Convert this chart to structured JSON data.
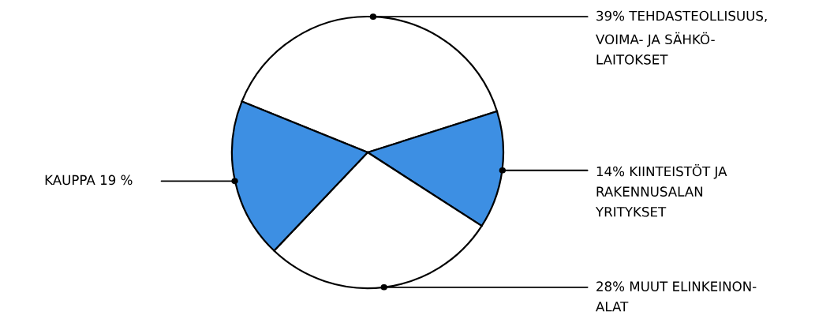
{
  "chart_data": {
    "type": "pie",
    "categories": [
      "TEHDASTEOLLISUUS,\nVOIMA- JA SÄHKÖ-\nLAITOKSET",
      "KIINTEISTÖT JA\nRAKENNUSALAN\nYRITYKSET",
      "MUUT ELINKEINON-\nALAT",
      "KAUPPA"
    ],
    "values": [
      39,
      14,
      28,
      19
    ],
    "value_labels": [
      "39%",
      "14%",
      "28%",
      "19 %"
    ],
    "colors": [
      "#ffffff",
      "#3d8fe3",
      "#ffffff",
      "#3d8fe3"
    ]
  }
}
